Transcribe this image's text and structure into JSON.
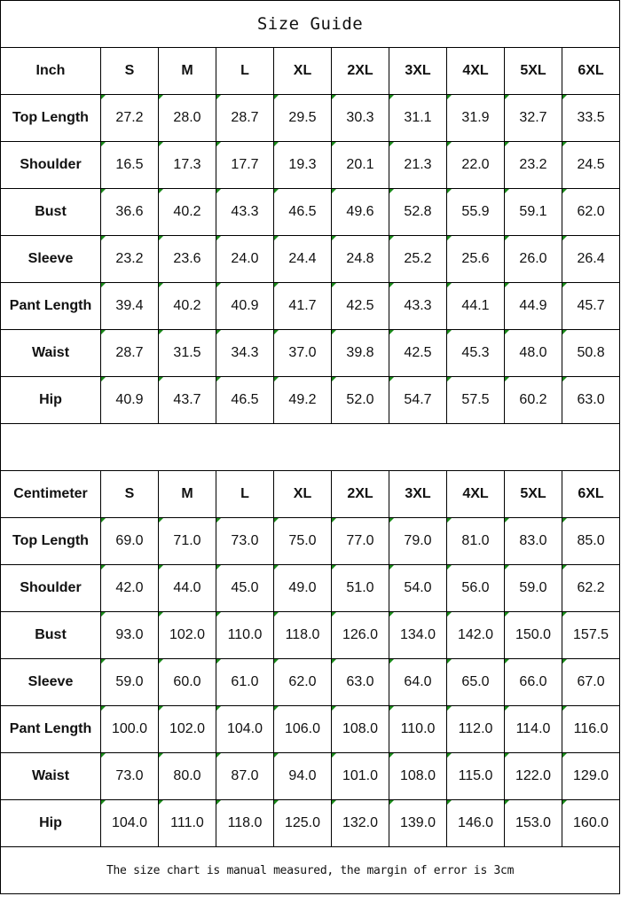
{
  "title": "Size Guide",
  "sizes": [
    "S",
    "M",
    "L",
    "XL",
    "2XL",
    "3XL",
    "4XL",
    "5XL",
    "6XL"
  ],
  "inch": {
    "unit_label": "Inch",
    "rows": [
      {
        "label": "Top Length",
        "values": [
          "27.2",
          "28.0",
          "28.7",
          "29.5",
          "30.3",
          "31.1",
          "31.9",
          "32.7",
          "33.5"
        ]
      },
      {
        "label": "Shoulder",
        "values": [
          "16.5",
          "17.3",
          "17.7",
          "19.3",
          "20.1",
          "21.3",
          "22.0",
          "23.2",
          "24.5"
        ]
      },
      {
        "label": "Bust",
        "values": [
          "36.6",
          "40.2",
          "43.3",
          "46.5",
          "49.6",
          "52.8",
          "55.9",
          "59.1",
          "62.0"
        ]
      },
      {
        "label": "Sleeve",
        "values": [
          "23.2",
          "23.6",
          "24.0",
          "24.4",
          "24.8",
          "25.2",
          "25.6",
          "26.0",
          "26.4"
        ]
      },
      {
        "label": "Pant Length",
        "values": [
          "39.4",
          "40.2",
          "40.9",
          "41.7",
          "42.5",
          "43.3",
          "44.1",
          "44.9",
          "45.7"
        ]
      },
      {
        "label": "Waist",
        "values": [
          "28.7",
          "31.5",
          "34.3",
          "37.0",
          "39.8",
          "42.5",
          "45.3",
          "48.0",
          "50.8"
        ]
      },
      {
        "label": "Hip",
        "values": [
          "40.9",
          "43.7",
          "46.5",
          "49.2",
          "52.0",
          "54.7",
          "57.5",
          "60.2",
          "63.0"
        ]
      }
    ]
  },
  "cm": {
    "unit_label": "Centimeter",
    "rows": [
      {
        "label": "Top Length",
        "values": [
          "69.0",
          "71.0",
          "73.0",
          "75.0",
          "77.0",
          "79.0",
          "81.0",
          "83.0",
          "85.0"
        ]
      },
      {
        "label": "Shoulder",
        "values": [
          "42.0",
          "44.0",
          "45.0",
          "49.0",
          "51.0",
          "54.0",
          "56.0",
          "59.0",
          "62.2"
        ]
      },
      {
        "label": "Bust",
        "values": [
          "93.0",
          "102.0",
          "110.0",
          "118.0",
          "126.0",
          "134.0",
          "142.0",
          "150.0",
          "157.5"
        ]
      },
      {
        "label": "Sleeve",
        "values": [
          "59.0",
          "60.0",
          "61.0",
          "62.0",
          "63.0",
          "64.0",
          "65.0",
          "66.0",
          "67.0"
        ]
      },
      {
        "label": "Pant Length",
        "values": [
          "100.0",
          "102.0",
          "104.0",
          "106.0",
          "108.0",
          "110.0",
          "112.0",
          "114.0",
          "116.0"
        ]
      },
      {
        "label": "Waist",
        "values": [
          "73.0",
          "80.0",
          "87.0",
          "94.0",
          "101.0",
          "108.0",
          "115.0",
          "122.0",
          "129.0"
        ]
      },
      {
        "label": "Hip",
        "values": [
          "104.0",
          "111.0",
          "118.0",
          "125.0",
          "132.0",
          "139.0",
          "146.0",
          "153.0",
          "160.0"
        ]
      }
    ]
  },
  "footer": "The size chart is manual measured, the margin of error is 3cm",
  "colors": {
    "cell_marker": "#1a8a1a",
    "border": "#000000"
  }
}
